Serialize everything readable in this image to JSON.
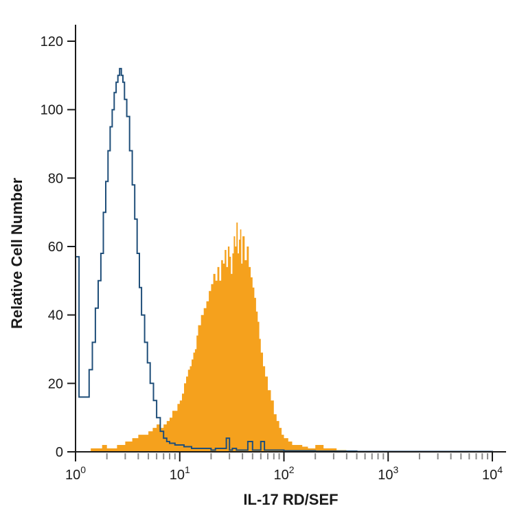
{
  "chart_data": {
    "type": "area",
    "title": "",
    "xlabel": "IL-17 RD/SEF",
    "ylabel": "Relative Cell Number",
    "xscale": "log",
    "xlim": [
      1,
      10000
    ],
    "ylim": [
      0,
      120
    ],
    "y_ticks": [
      "0",
      "20",
      "40",
      "60",
      "80",
      "100",
      "120"
    ],
    "x_ticks": [
      {
        "value": 1,
        "base": "10",
        "exp": "0"
      },
      {
        "value": 10,
        "base": "10",
        "exp": "1"
      },
      {
        "value": 100,
        "base": "10",
        "exp": "2"
      },
      {
        "value": 1000,
        "base": "10",
        "exp": "3"
      },
      {
        "value": 10000,
        "base": "10",
        "exp": "4"
      }
    ],
    "grid": false,
    "series": [
      {
        "style": "step-outline",
        "color": "#1f4e79",
        "x": [
          1.0,
          1.08,
          1.2,
          1.35,
          1.45,
          1.55,
          1.65,
          1.75,
          1.85,
          1.95,
          2.05,
          2.15,
          2.25,
          2.35,
          2.45,
          2.55,
          2.65,
          2.75,
          2.85,
          2.95,
          3.1,
          3.3,
          3.5,
          3.7,
          3.9,
          4.1,
          4.3,
          4.6,
          4.9,
          5.2,
          5.6,
          6.0,
          6.5,
          7.0,
          7.5,
          8.0,
          9.0,
          10.0,
          11.0,
          12.0,
          13.0,
          14.0,
          15.0,
          17.0,
          20.0,
          22.0,
          25.0,
          28.0,
          30.0,
          32.0,
          35.0,
          40.0,
          45.0,
          50.0,
          55.0,
          60.0,
          65.0,
          70.0,
          80.0,
          100.0,
          200.0,
          500.0,
          1000.0,
          3000.0,
          10000.0
        ],
        "y": [
          57,
          16,
          16,
          24,
          32,
          42,
          50,
          58,
          70,
          79,
          88,
          95,
          100,
          105,
          108,
          110,
          112,
          110,
          108,
          103,
          98,
          88,
          78,
          68,
          58,
          48,
          40,
          32,
          26,
          20,
          15,
          10,
          6,
          4,
          3,
          2.5,
          2,
          2,
          1.5,
          1.5,
          1,
          1,
          1,
          1,
          0.5,
          1,
          1,
          4,
          0.5,
          1,
          0.5,
          0.5,
          3,
          0.5,
          0.5,
          3,
          0.5,
          0.5,
          0.5,
          0.3,
          0.2,
          0.1,
          0.1,
          0.1,
          0
        ]
      },
      {
        "style": "filled",
        "color": "#f5a11d",
        "x": [
          1.4,
          1.6,
          1.8,
          2.0,
          2.2,
          2.5,
          3.0,
          3.5,
          4.0,
          4.5,
          5.0,
          5.5,
          6.0,
          6.5,
          7.0,
          7.5,
          8.0,
          8.5,
          9.0,
          9.5,
          10.0,
          10.5,
          11.0,
          11.5,
          12.0,
          12.5,
          13.0,
          13.5,
          14.0,
          14.5,
          15.0,
          16.0,
          17.0,
          18.0,
          19.0,
          20.0,
          21.0,
          22.0,
          23.0,
          24.0,
          25.0,
          26.0,
          27.0,
          28.0,
          29.0,
          30.0,
          31.0,
          32.0,
          33.0,
          34.0,
          35.0,
          36.0,
          37.0,
          38.0,
          39.0,
          40.0,
          42.0,
          44.0,
          46.0,
          48.0,
          50.0,
          52.0,
          54.0,
          56.0,
          58.0,
          60.0,
          63.0,
          66.0,
          70.0,
          75.0,
          80.0,
          85.0,
          90.0,
          95.0,
          100.0,
          110.0,
          120.0,
          130.0,
          140.0,
          150.0,
          170.0,
          200.0,
          240.0,
          280.0,
          320.0,
          380.0
        ],
        "y": [
          1,
          1,
          2,
          1,
          1,
          2,
          3,
          4,
          5,
          5,
          6,
          7,
          8,
          7,
          8,
          9,
          10,
          12,
          12,
          14,
          15,
          17,
          20,
          22,
          24,
          25,
          27,
          29,
          30,
          34,
          37,
          40,
          42,
          44,
          47,
          49,
          52,
          50,
          54,
          50,
          56,
          55,
          59,
          54,
          60,
          57,
          52,
          58,
          63,
          60,
          67,
          58,
          62,
          65,
          55,
          63,
          56,
          60,
          54,
          51,
          48,
          45,
          41,
          38,
          33,
          29,
          25,
          22,
          18,
          15,
          11,
          9,
          7,
          5,
          4,
          3,
          2,
          2,
          2,
          1.5,
          1,
          2,
          1,
          1,
          0.5,
          0.5
        ]
      }
    ]
  }
}
